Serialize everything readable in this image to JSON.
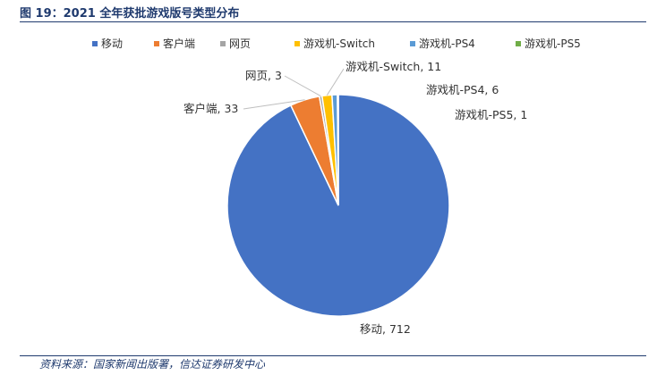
{
  "header": {
    "title": "图 19：2021 全年获批游戏版号类型分布"
  },
  "footer": {
    "source": "资料来源：国家新闻出版署，信达证券研发中心"
  },
  "chart_data": {
    "type": "pie",
    "title": "",
    "legend_position": "top",
    "labels": [
      "移动",
      "客户端",
      "网页",
      "游戏机-Switch",
      "游戏机-PS4",
      "游戏机-PS5"
    ],
    "values": [
      712,
      33,
      3,
      11,
      6,
      1
    ],
    "data_labels": [
      "移动, 712",
      "客户端, 33",
      "网页, 3",
      "游戏机-Switch, 11",
      "游戏机-PS4, 6",
      "游戏机-PS5, 1"
    ],
    "colors": [
      "#4472c4",
      "#ed7d31",
      "#a5a5a5",
      "#ffc000",
      "#5b9bd5",
      "#70ad47"
    ]
  }
}
